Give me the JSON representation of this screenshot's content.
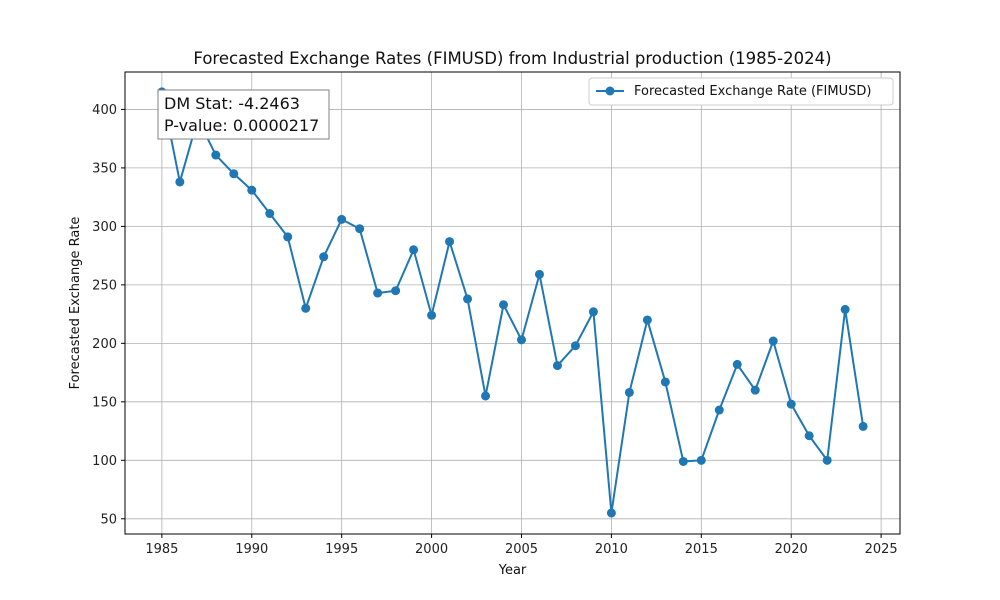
{
  "chart_data": {
    "type": "line",
    "title": "Forecasted Exchange Rates (FIMUSD) from Industrial production (1985-2024)",
    "xlabel": "Year",
    "ylabel": "Forecasted Exchange Rate",
    "xlim": [
      1982.95,
      2026.05
    ],
    "ylim": [
      37,
      432
    ],
    "xticks": [
      1985,
      1990,
      1995,
      2000,
      2005,
      2010,
      2015,
      2020,
      2025
    ],
    "yticks": [
      50,
      100,
      150,
      200,
      250,
      300,
      350,
      400
    ],
    "grid": true,
    "legend_position": "top-right",
    "color": "#1f77b4",
    "series": [
      {
        "name": "Forecasted Exchange Rate (FIMUSD)",
        "x": [
          1985,
          1986,
          1987,
          1988,
          1989,
          1990,
          1991,
          1992,
          1993,
          1994,
          1995,
          1996,
          1997,
          1998,
          1999,
          2000,
          2001,
          2002,
          2003,
          2004,
          2005,
          2006,
          2007,
          2008,
          2009,
          2010,
          2011,
          2012,
          2013,
          2014,
          2015,
          2016,
          2017,
          2018,
          2019,
          2020,
          2021,
          2022,
          2023,
          2024
        ],
        "y": [
          415,
          338,
          392,
          361,
          345,
          331,
          311,
          291,
          230,
          274,
          306,
          298,
          243,
          245,
          280,
          224,
          287,
          238,
          155,
          233,
          203,
          259,
          181,
          198,
          227,
          55,
          158,
          220,
          167,
          99,
          100,
          143,
          182,
          160,
          202,
          148,
          121,
          100,
          229,
          129
        ]
      }
    ],
    "annotation": {
      "line1": "DM Stat: -4.2463",
      "line2": "P-value: 0.0000217"
    }
  }
}
